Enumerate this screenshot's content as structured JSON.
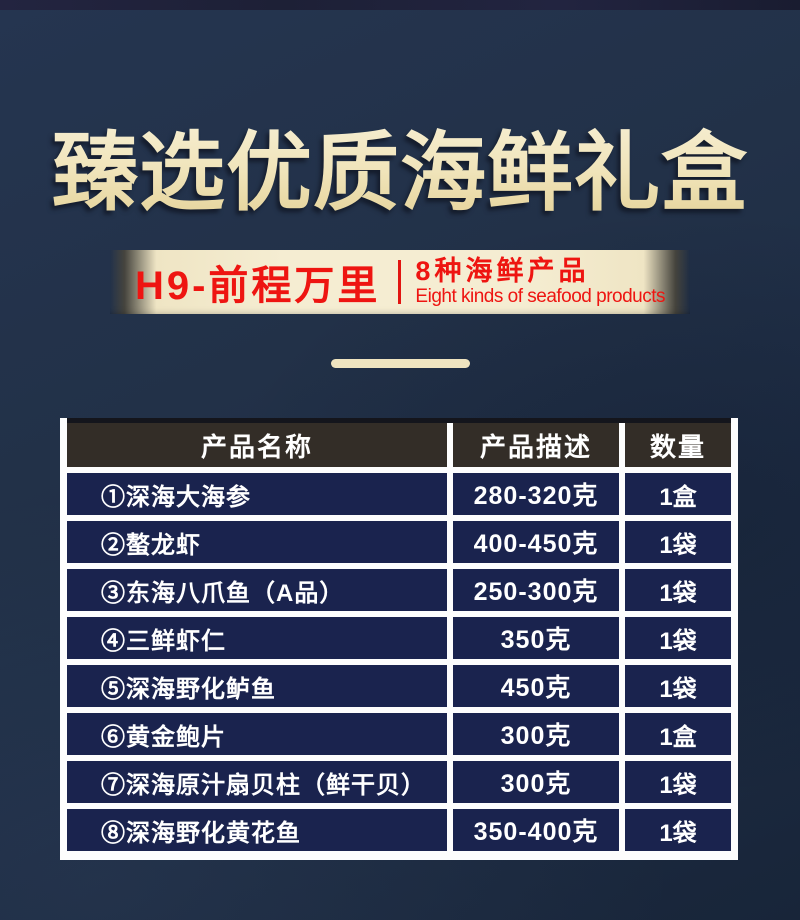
{
  "header": {
    "title": "臻选优质海鲜礼盒",
    "title_color": "#f0e4ba"
  },
  "ribbon": {
    "model": "H9-前程万里",
    "subtitle_cn": "8种海鲜产品",
    "subtitle_en": "Eight kinds of seafood products",
    "text_color": "#ee1511",
    "bg_color": "#f4ecd0"
  },
  "colors": {
    "page_bg": "#1f2e46",
    "top_strip": "#1e2036",
    "table_header_bg": "#332d27",
    "table_row_bg": "#1a234e",
    "table_gutter": "#fdfdfd"
  },
  "table": {
    "columns": [
      "产品名称",
      "产品描述",
      "数量"
    ],
    "rows": [
      {
        "name": "①深海大海参",
        "desc": "280-320克",
        "qty": "1盒"
      },
      {
        "name": "②螯龙虾",
        "desc": "400-450克",
        "qty": "1袋"
      },
      {
        "name": "③东海八爪鱼（A品）",
        "desc": "250-300克",
        "qty": "1袋"
      },
      {
        "name": "④三鲜虾仁",
        "desc": "350克",
        "qty": "1袋"
      },
      {
        "name": "⑤深海野化鲈鱼",
        "desc": "450克",
        "qty": "1袋"
      },
      {
        "name": "⑥黄金鲍片",
        "desc": "300克",
        "qty": "1盒"
      },
      {
        "name": "⑦深海原汁扇贝柱（鲜干贝）",
        "desc": "300克",
        "qty": "1袋"
      },
      {
        "name": "⑧深海野化黄花鱼",
        "desc": "350-400克",
        "qty": "1袋"
      }
    ]
  }
}
